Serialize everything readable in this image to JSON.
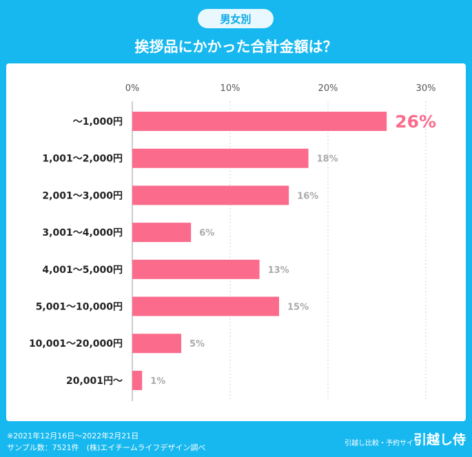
{
  "header": {
    "badge": "男女別",
    "title": "挨拶品にかかった合計金額は？"
  },
  "chart_data": {
    "type": "bar",
    "orientation": "horizontal",
    "categories": [
      "〜1,000円",
      "1,001〜2,000円",
      "2,001〜3,000円",
      "3,001〜4,000円",
      "4,001〜5,000円",
      "5,001〜10,000円",
      "10,001〜20,000円",
      "20,001円〜"
    ],
    "values": [
      26,
      18,
      16,
      6,
      13,
      15,
      5,
      1
    ],
    "value_labels": [
      "26%",
      "18%",
      "16%",
      "6%",
      "13%",
      "15%",
      "5%",
      "1%"
    ],
    "xticks": [
      "0%",
      "10%",
      "20%",
      "30%"
    ],
    "xtick_values": [
      0,
      10,
      20,
      30
    ],
    "xlim": [
      0,
      30
    ],
    "grid": true,
    "colors": {
      "bar": "#fb6b8c",
      "highlight_label": "#fb6b8c",
      "label": "#aaaaaa",
      "category": "#222222",
      "grid": "#cfcfcf",
      "axis": "#999999"
    }
  },
  "footer": {
    "note_line1": "※2021年12月16日〜2022年2月21日",
    "note_line2": "サンプル数：7521件　(株)エイチームライフデザイン調べ",
    "site_tagline": "引越し比較・予約サイト",
    "logo": "引越し侍"
  }
}
